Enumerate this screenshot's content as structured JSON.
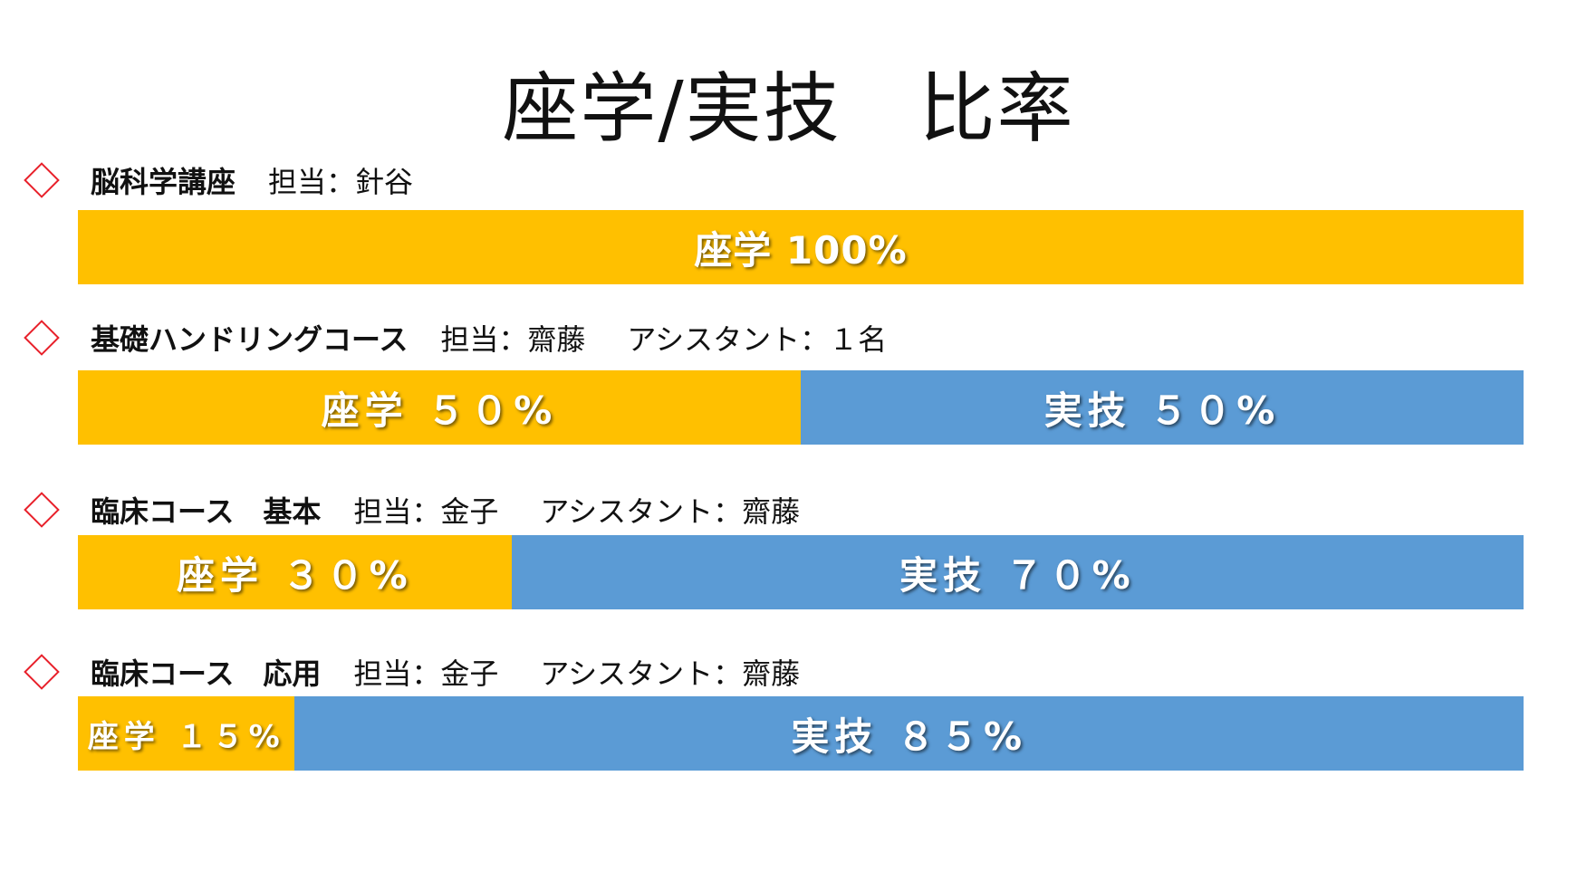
{
  "title": "座学/実技　比率",
  "colors": {
    "lecture": "#ffc000",
    "practical": "#5b9bd5",
    "bullet": "#e8202a"
  },
  "chart_data": {
    "type": "bar",
    "stacked": true,
    "orientation": "horizontal",
    "title": "座学/実技　比率",
    "categories": [
      "脳科学講座",
      "基礎ハンドリングコース",
      "臨床コース　基本",
      "臨床コース　応用"
    ],
    "series": [
      {
        "name": "座学",
        "values": [
          100,
          50,
          30,
          15
        ]
      },
      {
        "name": "実技",
        "values": [
          0,
          50,
          70,
          85
        ]
      }
    ],
    "xlim": [
      0,
      100
    ]
  },
  "courses": [
    {
      "name": "脳科学講座",
      "staff": "担当：針谷",
      "assistant": "",
      "segments": [
        {
          "kind": "lec",
          "value": 100,
          "label": "座学 100%"
        }
      ]
    },
    {
      "name": "基礎ハンドリングコース",
      "staff": "担当：齋藤",
      "assistant": "アシスタント：１名",
      "segments": [
        {
          "kind": "lec",
          "value": 50,
          "label": "座学 ５０%"
        },
        {
          "kind": "prac",
          "value": 50,
          "label": "実技 ５０%"
        }
      ]
    },
    {
      "name": "臨床コース　基本",
      "staff": "担当：金子",
      "assistant": "アシスタント：齋藤",
      "segments": [
        {
          "kind": "lec",
          "value": 30,
          "label": "座学 ３０%"
        },
        {
          "kind": "prac",
          "value": 70,
          "label": "実技 ７０%"
        }
      ]
    },
    {
      "name": "臨床コース　応用",
      "staff": "担当：金子",
      "assistant": "アシスタント：齋藤",
      "segments": [
        {
          "kind": "lec",
          "value": 15,
          "label": "座学 １５%"
        },
        {
          "kind": "prac",
          "value": 85,
          "label": "実技 ８５%"
        }
      ]
    }
  ]
}
